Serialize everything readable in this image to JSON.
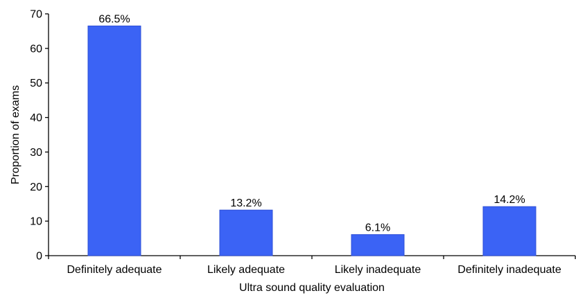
{
  "chart_data": {
    "type": "bar",
    "categories": [
      "Definitely adequate",
      "Likely adequate",
      "Likely inadequate",
      "Definitely inadequate"
    ],
    "values": [
      66.5,
      13.2,
      6.1,
      14.2
    ],
    "data_labels": [
      "66.5%",
      "13.2%",
      "6.1%",
      "14.2%"
    ],
    "title": "",
    "xlabel": "Ultra sound quality evaluation",
    "ylabel": "Proportion of exams",
    "ylim": [
      0,
      70
    ],
    "yticks": [
      0,
      10,
      20,
      30,
      40,
      50,
      60,
      70
    ],
    "ytick_labels": [
      "0",
      "10",
      "20",
      "30",
      "40",
      "50",
      "60",
      "70"
    ],
    "grid": false,
    "legend": "none",
    "bar_color": "#3B63F5",
    "bar_edge_color": "#2E4FD6",
    "axis_color": "#000000"
  }
}
